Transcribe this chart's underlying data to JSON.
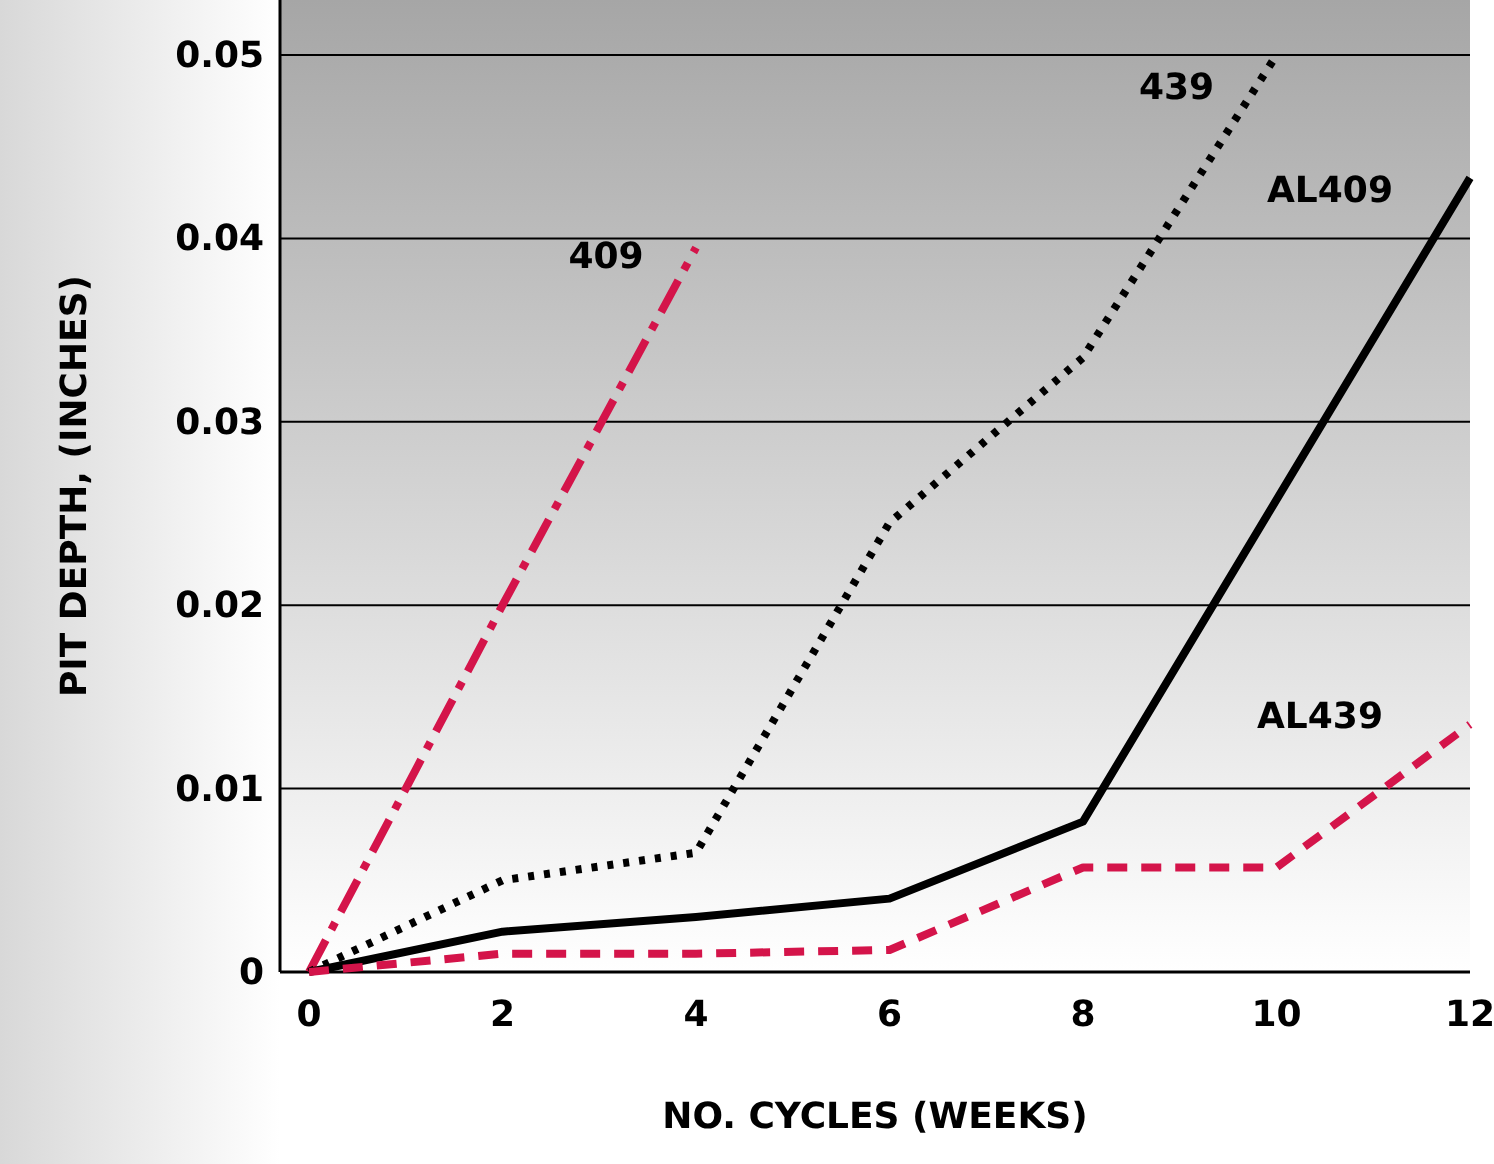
{
  "chart_data": {
    "type": "line",
    "xlabel": "NO. CYCLES (WEEKS)",
    "ylabel": "PIT DEPTH, (INCHES)",
    "xlim": [
      -0.3,
      12
    ],
    "xticks": [
      0,
      2,
      4,
      6,
      8,
      10,
      12
    ],
    "ylim": [
      0,
      0.053
    ],
    "yticks": [
      0,
      0.01,
      0.02,
      0.03,
      0.04,
      0.05
    ],
    "grid": "y",
    "marker": "none",
    "series": [
      {
        "name": "409",
        "color": "#d4144a",
        "line_style": "dashdot",
        "x": [
          0,
          2,
          4
        ],
        "values": [
          0,
          0.02,
          0.0395
        ]
      },
      {
        "name": "439",
        "color": "#000000",
        "line_style": "dotted",
        "x": [
          0,
          2,
          4,
          6,
          8,
          10
        ],
        "values": [
          0,
          0.005,
          0.0065,
          0.0245,
          0.0335,
          0.05
        ]
      },
      {
        "name": "AL409",
        "color": "#000000",
        "line_style": "solid",
        "x": [
          0,
          2,
          4,
          6,
          8,
          12
        ],
        "values": [
          0,
          0.0022,
          0.003,
          0.004,
          0.0082,
          0.0433
        ]
      },
      {
        "name": "AL439",
        "color": "#d4144a",
        "line_style": "dashed",
        "x": [
          0,
          2,
          4,
          6,
          8,
          10,
          12
        ],
        "values": [
          0,
          0.001,
          0.001,
          0.0012,
          0.0057,
          0.0057,
          0.0135
        ]
      }
    ]
  }
}
